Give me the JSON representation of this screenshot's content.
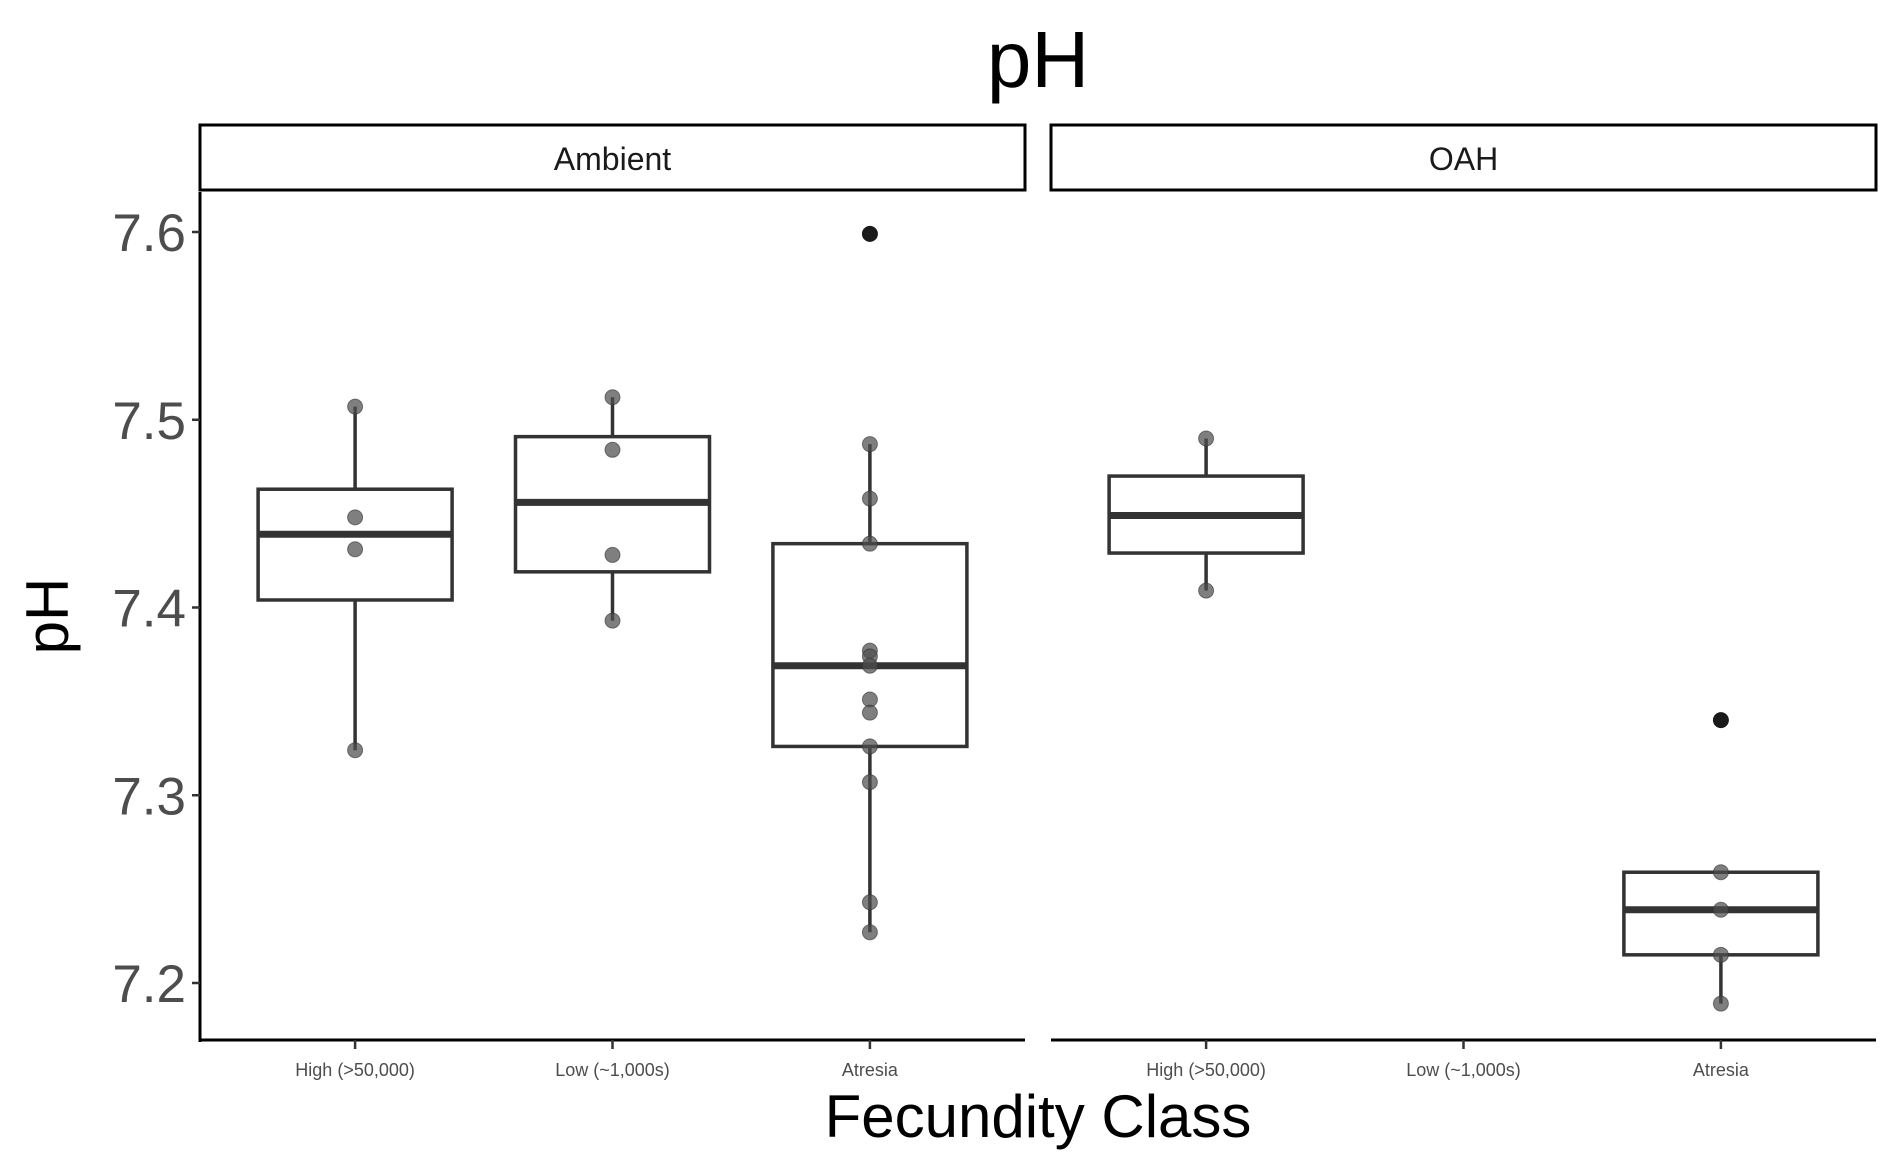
{
  "chart_data": {
    "type": "boxplot",
    "title": "pH",
    "xlabel": "Fecundity Class",
    "ylabel": "pH",
    "ylim": [
      7.18,
      7.62
    ],
    "yticks": [
      "7.2",
      "7.3",
      "7.4",
      "7.5",
      "7.6"
    ],
    "categories": [
      "High (>50,000)",
      "Low (~1,000s)",
      "Atresia"
    ],
    "grid": false,
    "panels": [
      {
        "name": "Ambient",
        "boxes": [
          {
            "category": "High (>50,000)",
            "q1": 7.404,
            "median": 7.439,
            "q3": 7.463,
            "whisker_low": 7.324,
            "whisker_high": 7.507,
            "points": [
              7.507,
              7.448,
              7.431,
              7.324
            ],
            "outliers": []
          },
          {
            "category": "Low (~1,000s)",
            "q1": 7.419,
            "median": 7.456,
            "q3": 7.491,
            "whisker_low": 7.393,
            "whisker_high": 7.512,
            "points": [
              7.512,
              7.484,
              7.428,
              7.393
            ],
            "outliers": []
          },
          {
            "category": "Atresia",
            "q1": 7.326,
            "median": 7.369,
            "q3": 7.434,
            "whisker_low": 7.227,
            "whisker_high": 7.487,
            "points": [
              7.487,
              7.458,
              7.434,
              7.377,
              7.374,
              7.369,
              7.351,
              7.344,
              7.326,
              7.307,
              7.243,
              7.227
            ],
            "outliers": [
              7.599
            ]
          }
        ]
      },
      {
        "name": "OAH",
        "boxes": [
          {
            "category": "High (>50,000)",
            "q1": 7.429,
            "median": 7.449,
            "q3": 7.47,
            "whisker_low": 7.409,
            "whisker_high": 7.49,
            "points": [
              7.49,
              7.409
            ],
            "outliers": []
          },
          {
            "category": "Low (~1,000s)",
            "empty": true,
            "points": [],
            "outliers": []
          },
          {
            "category": "Atresia",
            "q1": 7.215,
            "median": 7.239,
            "q3": 7.259,
            "whisker_low": 7.189,
            "whisker_high": 7.259,
            "points": [
              7.259,
              7.239,
              7.215,
              7.189
            ],
            "outliers": [
              7.34
            ]
          }
        ]
      }
    ],
    "colors": {
      "box": "#333333",
      "point": "#4d4d4d",
      "outlier": "#1a1a1a"
    }
  }
}
